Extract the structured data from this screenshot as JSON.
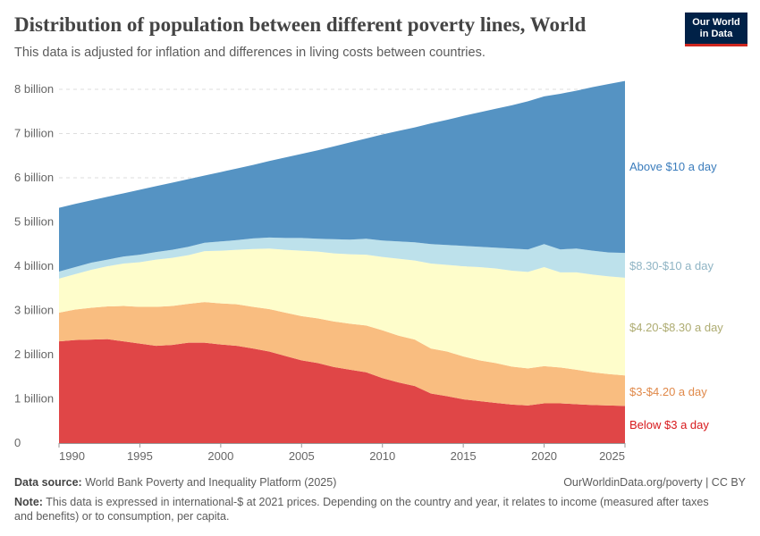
{
  "header": {
    "title": "Distribution of population between different poverty lines, World",
    "subtitle": "This data is adjusted for inflation and differences in living costs between countries.",
    "logo": "Our World in Data",
    "logo_line1": "Our World",
    "logo_line2": "in Data"
  },
  "footer": {
    "source_label": "Data source:",
    "source": "World Bank Poverty and Inequality Platform (2025)",
    "url": "OurWorldinData.org/poverty | CC BY",
    "note_label": "Note:",
    "note": "This data is expressed in international-$ at 2021 prices. Depending on the country and year, it relates to income (measured after taxes and benefits) or to consumption, per capita."
  },
  "chart_data": {
    "type": "area",
    "stacked": true,
    "xlim": [
      1990,
      2025
    ],
    "ylim": [
      0,
      8000000000
    ],
    "x_ticks": [
      "1990",
      "1995",
      "2000",
      "2005",
      "2010",
      "2015",
      "2020",
      "2025"
    ],
    "y_ticks": [
      "0",
      "1 billion",
      "2 billion",
      "3 billion",
      "4 billion",
      "5 billion",
      "6 billion",
      "7 billion",
      "8 billion"
    ],
    "grid": "horizontal dashed",
    "legend_placement": "right (inline labels)",
    "unit": "billion",
    "x": [
      1990,
      1991,
      1992,
      1993,
      1994,
      1995,
      1996,
      1997,
      1998,
      1999,
      2000,
      2001,
      2002,
      2003,
      2004,
      2005,
      2006,
      2007,
      2008,
      2009,
      2010,
      2011,
      2012,
      2013,
      2014,
      2015,
      2016,
      2017,
      2018,
      2019,
      2020,
      2021,
      2022,
      2023,
      2024,
      2025
    ],
    "series": [
      {
        "name": "Below $3 a day",
        "color": "#e04647",
        "label_color": "#d7191c",
        "values": [
          2.3,
          2.33,
          2.34,
          2.35,
          2.3,
          2.25,
          2.2,
          2.22,
          2.27,
          2.27,
          2.23,
          2.2,
          2.14,
          2.07,
          1.97,
          1.87,
          1.81,
          1.72,
          1.66,
          1.6,
          1.47,
          1.37,
          1.29,
          1.12,
          1.06,
          0.99,
          0.95,
          0.91,
          0.87,
          0.85,
          0.9,
          0.9,
          0.88,
          0.86,
          0.85,
          0.84
        ]
      },
      {
        "name": "$3-$4.20 a day",
        "color": "#f9bd80",
        "label_color": "#e0894a",
        "values": [
          0.65,
          0.69,
          0.72,
          0.74,
          0.8,
          0.83,
          0.88,
          0.88,
          0.88,
          0.92,
          0.93,
          0.94,
          0.94,
          0.96,
          0.98,
          1.0,
          1.01,
          1.03,
          1.04,
          1.06,
          1.08,
          1.06,
          1.05,
          1.02,
          1.01,
          0.97,
          0.92,
          0.9,
          0.86,
          0.84,
          0.84,
          0.81,
          0.78,
          0.74,
          0.71,
          0.69
        ]
      },
      {
        "name": "$4.20-$8.30 a day",
        "color": "#fefdcb",
        "label_color": "#aeac72",
        "values": [
          0.77,
          0.8,
          0.86,
          0.91,
          0.96,
          1.01,
          1.07,
          1.09,
          1.1,
          1.15,
          1.19,
          1.23,
          1.31,
          1.37,
          1.42,
          1.48,
          1.51,
          1.54,
          1.57,
          1.6,
          1.66,
          1.74,
          1.79,
          1.92,
          1.96,
          2.04,
          2.11,
          2.14,
          2.17,
          2.18,
          2.24,
          2.15,
          2.2,
          2.21,
          2.21,
          2.21
        ]
      },
      {
        "name": "$8.30-$10 a day",
        "color": "#bde1eb",
        "label_color": "#8fb4c4",
        "values": [
          0.16,
          0.16,
          0.16,
          0.15,
          0.16,
          0.17,
          0.17,
          0.18,
          0.19,
          0.19,
          0.21,
          0.22,
          0.24,
          0.25,
          0.27,
          0.29,
          0.29,
          0.32,
          0.33,
          0.36,
          0.37,
          0.39,
          0.41,
          0.44,
          0.45,
          0.46,
          0.46,
          0.47,
          0.5,
          0.51,
          0.52,
          0.52,
          0.54,
          0.54,
          0.54,
          0.56
        ]
      },
      {
        "name": "Above $10 a day",
        "color": "#5593c3",
        "label_color": "#3a7cbc",
        "values": [
          1.44,
          1.43,
          1.41,
          1.42,
          1.43,
          1.47,
          1.49,
          1.52,
          1.53,
          1.52,
          1.57,
          1.62,
          1.66,
          1.73,
          1.82,
          1.9,
          2.0,
          2.1,
          2.2,
          2.27,
          2.4,
          2.5,
          2.6,
          2.73,
          2.83,
          2.94,
          3.04,
          3.14,
          3.24,
          3.35,
          3.34,
          3.52,
          3.57,
          3.7,
          3.81,
          3.89
        ]
      }
    ]
  }
}
